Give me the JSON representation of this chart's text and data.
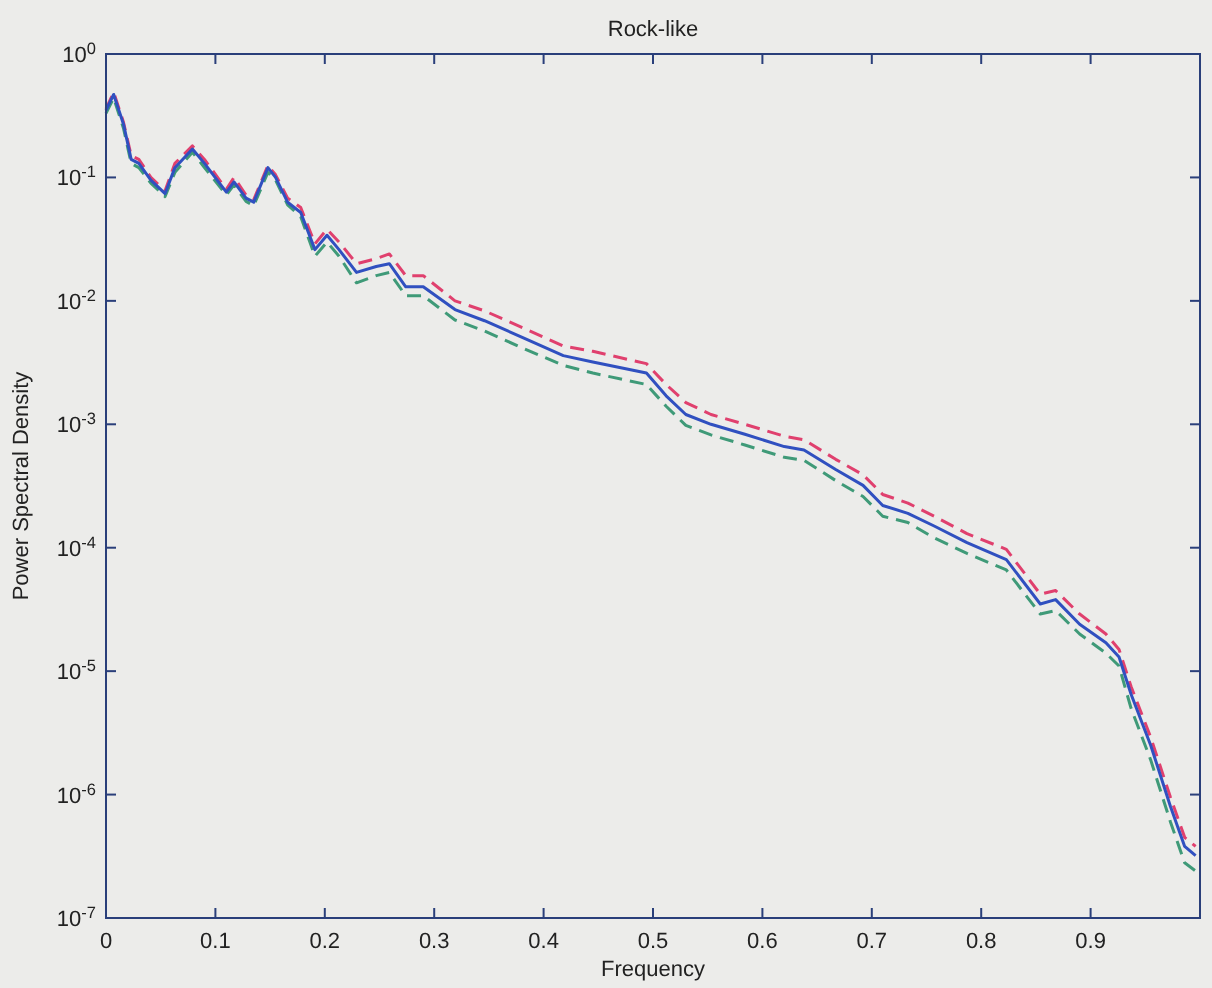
{
  "chart_data": {
    "type": "line",
    "title": "Rock-like",
    "xlabel": "Frequency",
    "ylabel": "Power Spectral Density",
    "log": "y",
    "grid": false,
    "x": [
      0,
      0.007,
      0.016,
      0.023,
      0.03,
      0.041,
      0.054,
      0.063,
      0.079,
      0.09,
      0.11,
      0.117,
      0.128,
      0.135,
      0.148,
      0.155,
      0.166,
      0.178,
      0.191,
      0.202,
      0.213,
      0.229,
      0.247,
      0.259,
      0.274,
      0.29,
      0.319,
      0.346,
      0.382,
      0.418,
      0.445,
      0.494,
      0.512,
      0.53,
      0.553,
      0.584,
      0.62,
      0.638,
      0.667,
      0.692,
      0.71,
      0.733,
      0.757,
      0.787,
      0.823,
      0.854,
      0.868,
      0.89,
      0.914,
      0.926,
      0.937,
      0.955,
      0.973,
      0.986,
      0.996
    ],
    "xlim": [
      0,
      1
    ],
    "xticks": [
      0,
      0.1,
      0.2,
      0.3,
      0.4,
      0.5,
      0.6,
      0.7,
      0.8,
      0.9
    ],
    "ylim": [
      1e-07,
      1
    ],
    "yticks": [
      {
        "value": 1e-07,
        "label": "10$^{-7}$"
      },
      {
        "value": 1e-06,
        "label": "10$^{-6}$"
      },
      {
        "value": 1e-05,
        "label": "10$^{-5}$"
      },
      {
        "value": 0.0001,
        "label": "10$^{-4}$"
      },
      {
        "value": 0.001,
        "label": "10$^{-3}$"
      },
      {
        "value": 0.01,
        "label": "10$^{-2}$"
      },
      {
        "value": 0.1,
        "label": "10$^{-1}$"
      },
      {
        "value": 1,
        "label": "10$^{0}$"
      }
    ],
    "series": [
      {
        "color": "#e0406e",
        "line_style": "dashed",
        "values": [
          0.36,
          0.49,
          0.28,
          0.15,
          0.14,
          0.1,
          0.078,
          0.13,
          0.18,
          0.14,
          0.08,
          0.1,
          0.072,
          0.066,
          0.125,
          0.105,
          0.068,
          0.057,
          0.029,
          0.038,
          0.03,
          0.02,
          0.022,
          0.024,
          0.016,
          0.016,
          0.01,
          0.0083,
          0.006,
          0.0043,
          0.0039,
          0.0031,
          0.0021,
          0.0015,
          0.0012,
          0.001,
          0.0008,
          0.00075,
          0.00052,
          0.00039,
          0.00027,
          0.00023,
          0.00018,
          0.00013,
          9.7e-05,
          4.2e-05,
          4.5e-05,
          2.9e-05,
          2e-05,
          1.5e-05,
          7.5e-06,
          2.9e-06,
          9.5e-07,
          4.5e-07,
          3.8e-07
        ]
      },
      {
        "color": "#3f9a78",
        "line_style": "dashed",
        "values": [
          0.33,
          0.44,
          0.25,
          0.13,
          0.12,
          0.09,
          0.07,
          0.11,
          0.16,
          0.12,
          0.072,
          0.087,
          0.064,
          0.059,
          0.11,
          0.095,
          0.06,
          0.048,
          0.023,
          0.03,
          0.023,
          0.014,
          0.016,
          0.017,
          0.011,
          0.011,
          0.007,
          0.0057,
          0.0041,
          0.003,
          0.0026,
          0.0021,
          0.0014,
          0.00098,
          0.00082,
          0.00068,
          0.00054,
          0.00051,
          0.00035,
          0.00026,
          0.00018,
          0.00016,
          0.00012,
          9e-05,
          6.6e-05,
          2.9e-05,
          3.1e-05,
          2e-05,
          1.4e-05,
          1.1e-05,
          5e-06,
          1.9e-06,
          6e-07,
          2.8e-07,
          2.4e-07
        ]
      },
      {
        "color": "#3050c0",
        "line_style": "solid",
        "values": [
          0.35,
          0.47,
          0.27,
          0.14,
          0.13,
          0.095,
          0.074,
          0.12,
          0.17,
          0.13,
          0.076,
          0.092,
          0.068,
          0.063,
          0.12,
          0.1,
          0.063,
          0.052,
          0.026,
          0.034,
          0.026,
          0.017,
          0.019,
          0.02,
          0.013,
          0.013,
          0.0085,
          0.0069,
          0.005,
          0.0036,
          0.0032,
          0.0026,
          0.0017,
          0.0012,
          0.001,
          0.00083,
          0.00066,
          0.00062,
          0.00043,
          0.00032,
          0.00022,
          0.00019,
          0.00015,
          0.00011,
          8e-05,
          3.5e-05,
          3.8e-05,
          2.4e-05,
          1.7e-05,
          1.3e-05,
          6.5e-06,
          2.5e-06,
          8e-07,
          3.8e-07,
          3.2e-07
        ]
      }
    ]
  }
}
